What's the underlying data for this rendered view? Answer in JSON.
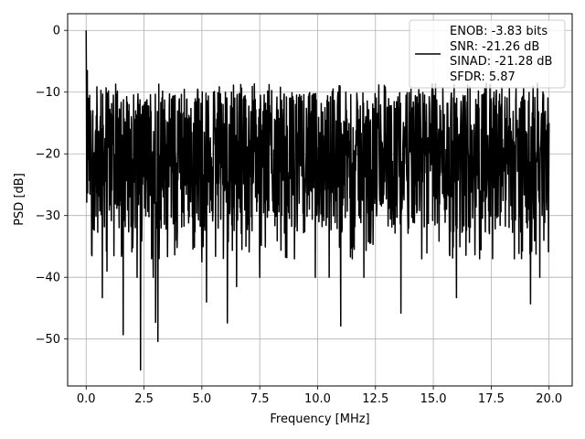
{
  "chart_data": {
    "type": "line",
    "title": "",
    "xlabel": "Frequency [MHz]",
    "ylabel": "PSD [dB]",
    "xlim": [
      -0.8,
      21.0
    ],
    "ylim": [
      -57.6,
      2.7
    ],
    "xticks": [
      0.0,
      2.5,
      5.0,
      7.5,
      10.0,
      12.5,
      15.0,
      17.5,
      20.0
    ],
    "xtick_labels": [
      "0.0",
      "2.5",
      "5.0",
      "7.5",
      "10.0",
      "12.5",
      "15.0",
      "17.5",
      "20.0"
    ],
    "yticks": [
      0,
      -10,
      -20,
      -30,
      -40,
      -50
    ],
    "ytick_labels": [
      "0",
      "−10",
      "−20",
      "−30",
      "−40",
      "−50"
    ],
    "grid": true,
    "legend_position": "top-right",
    "legend_lines": [
      "ENOB: -3.83 bits",
      "SNR: -21.26 dB",
      "SINAD: -21.28 dB",
      "SFDR: 5.87"
    ],
    "series_color": "#000000",
    "grid_color": "#b0b0b0",
    "noise": {
      "x_range": [
        0.0,
        20.0
      ],
      "typical_range_db": [
        -33,
        -10
      ],
      "upper_envelope_db": -8.5,
      "floor_db": -37,
      "point_count": 1600
    },
    "peaks": [
      {
        "x": 0.0,
        "y": 0.0
      },
      {
        "x": 0.05,
        "y": -6.5
      },
      {
        "x": 0.1,
        "y": -11.0
      }
    ],
    "dips": [
      {
        "x": 0.25,
        "y": -36.5
      },
      {
        "x": 0.7,
        "y": -43.3
      },
      {
        "x": 0.9,
        "y": -39.0
      },
      {
        "x": 1.2,
        "y": -36.5
      },
      {
        "x": 1.6,
        "y": -49.3
      },
      {
        "x": 2.2,
        "y": -40.0
      },
      {
        "x": 2.35,
        "y": -55.0
      },
      {
        "x": 2.9,
        "y": -40.0
      },
      {
        "x": 3.0,
        "y": -47.3
      },
      {
        "x": 3.1,
        "y": -50.4
      },
      {
        "x": 3.9,
        "y": -34.0
      },
      {
        "x": 5.0,
        "y": -37.5
      },
      {
        "x": 5.2,
        "y": -44.0
      },
      {
        "x": 6.1,
        "y": -47.4
      },
      {
        "x": 6.5,
        "y": -41.5
      },
      {
        "x": 7.5,
        "y": -40.0
      },
      {
        "x": 9.0,
        "y": -37.0
      },
      {
        "x": 9.9,
        "y": -40.0
      },
      {
        "x": 10.5,
        "y": -40.0
      },
      {
        "x": 11.0,
        "y": -47.9
      },
      {
        "x": 11.5,
        "y": -37.0
      },
      {
        "x": 12.0,
        "y": -40.0
      },
      {
        "x": 13.6,
        "y": -45.8
      },
      {
        "x": 14.5,
        "y": -37.0
      },
      {
        "x": 16.0,
        "y": -43.3
      },
      {
        "x": 17.0,
        "y": -37.0
      },
      {
        "x": 18.5,
        "y": -37.0
      },
      {
        "x": 19.2,
        "y": -44.3
      },
      {
        "x": 19.6,
        "y": -40.0
      }
    ]
  }
}
